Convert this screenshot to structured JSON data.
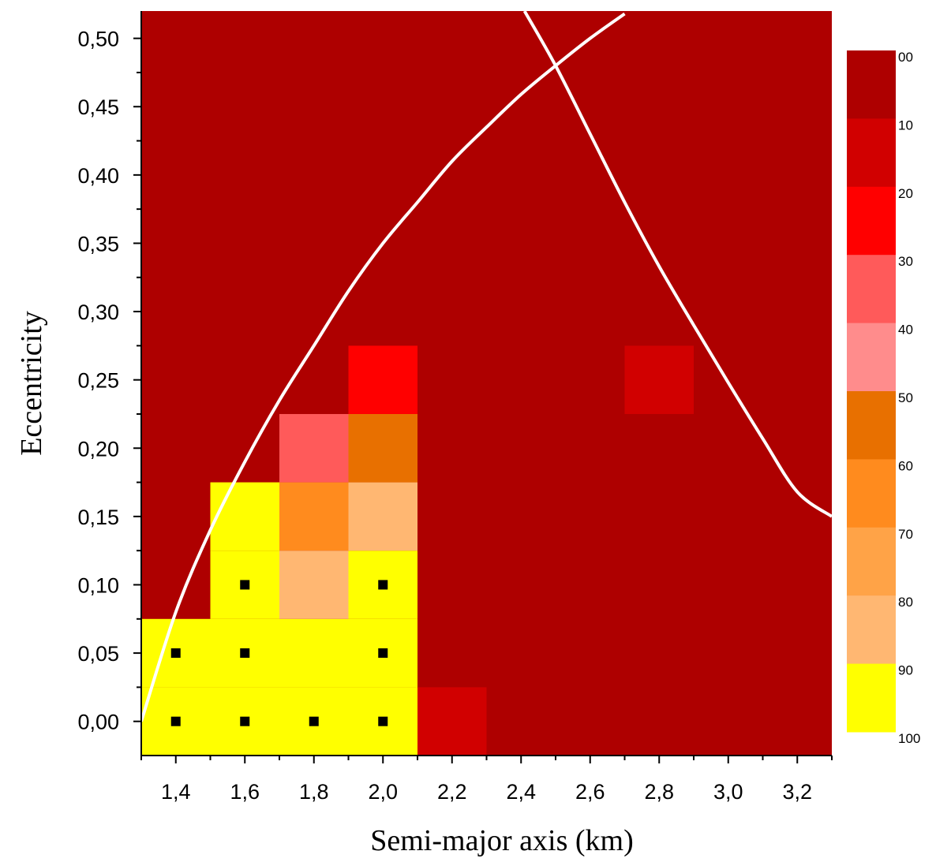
{
  "chart_data": {
    "type": "heatmap",
    "xlabel": "Semi-major axis (km)",
    "ylabel": "Eccentricity",
    "xlim": [
      1.3,
      3.3
    ],
    "ylim": [
      -0.025,
      0.52
    ],
    "cell": {
      "width": 0.2,
      "height": 0.05
    },
    "background_value": 0,
    "x_ticks": [
      1.4,
      1.6,
      1.8,
      2.0,
      2.2,
      2.4,
      2.6,
      2.8,
      3.0,
      3.2
    ],
    "x_tick_labels": [
      "1,4",
      "1,6",
      "1,8",
      "2,0",
      "2,2",
      "2,4",
      "2,6",
      "2,8",
      "3,0",
      "3,2"
    ],
    "y_ticks": [
      0.0,
      0.05,
      0.1,
      0.15,
      0.2,
      0.25,
      0.3,
      0.35,
      0.4,
      0.45,
      0.5
    ],
    "y_tick_labels": [
      "0,00",
      "0,05",
      "0,10",
      "0,15",
      "0,20",
      "0,25",
      "0,30",
      "0,35",
      "0,40",
      "0,45",
      "0,50"
    ],
    "cells": [
      {
        "x": 1.4,
        "y": 0.0,
        "value": 95
      },
      {
        "x": 1.4,
        "y": 0.05,
        "value": 95
      },
      {
        "x": 1.6,
        "y": 0.0,
        "value": 95
      },
      {
        "x": 1.6,
        "y": 0.05,
        "value": 95
      },
      {
        "x": 1.6,
        "y": 0.1,
        "value": 95
      },
      {
        "x": 1.6,
        "y": 0.15,
        "value": 95
      },
      {
        "x": 1.8,
        "y": 0.0,
        "value": 95
      },
      {
        "x": 1.8,
        "y": 0.05,
        "value": 95
      },
      {
        "x": 1.8,
        "y": 0.1,
        "value": 85
      },
      {
        "x": 1.8,
        "y": 0.15,
        "value": 65
      },
      {
        "x": 1.8,
        "y": 0.2,
        "value": 35
      },
      {
        "x": 2.0,
        "y": 0.0,
        "value": 95
      },
      {
        "x": 2.0,
        "y": 0.05,
        "value": 95
      },
      {
        "x": 2.0,
        "y": 0.1,
        "value": 95
      },
      {
        "x": 2.0,
        "y": 0.15,
        "value": 85
      },
      {
        "x": 2.0,
        "y": 0.2,
        "value": 55
      },
      {
        "x": 2.0,
        "y": 0.25,
        "value": 25
      },
      {
        "x": 2.2,
        "y": 0.0,
        "value": 15
      },
      {
        "x": 2.8,
        "y": 0.25,
        "value": 15
      }
    ],
    "markers": [
      {
        "x": 1.4,
        "y": 0.0
      },
      {
        "x": 1.4,
        "y": 0.05
      },
      {
        "x": 1.6,
        "y": 0.0
      },
      {
        "x": 1.6,
        "y": 0.05
      },
      {
        "x": 1.6,
        "y": 0.1
      },
      {
        "x": 1.8,
        "y": 0.0
      },
      {
        "x": 2.0,
        "y": 0.0
      },
      {
        "x": 2.0,
        "y": 0.05
      },
      {
        "x": 2.0,
        "y": 0.1
      }
    ],
    "curves": [
      {
        "color": "#ffffff",
        "points": [
          [
            1.3,
            0.0
          ],
          [
            1.4,
            0.08
          ],
          [
            1.5,
            0.14
          ],
          [
            1.6,
            0.19
          ],
          [
            1.7,
            0.235
          ],
          [
            1.8,
            0.275
          ],
          [
            1.9,
            0.315
          ],
          [
            2.0,
            0.35
          ],
          [
            2.1,
            0.38
          ],
          [
            2.2,
            0.41
          ],
          [
            2.3,
            0.435
          ],
          [
            2.4,
            0.459
          ],
          [
            2.5,
            0.48
          ],
          [
            2.6,
            0.5
          ],
          [
            2.7,
            0.518
          ]
        ]
      },
      {
        "color": "#ffffff",
        "points": [
          [
            2.41,
            0.52
          ],
          [
            2.5,
            0.48
          ],
          [
            2.6,
            0.43
          ],
          [
            2.7,
            0.38
          ],
          [
            2.8,
            0.333
          ],
          [
            2.9,
            0.29
          ],
          [
            3.0,
            0.248
          ],
          [
            3.1,
            0.207
          ],
          [
            3.2,
            0.168
          ],
          [
            3.3,
            0.15
          ]
        ]
      }
    ],
    "colorscale": {
      "labels": [
        "00",
        "10",
        "20",
        "30",
        "40",
        "50",
        "60",
        "70",
        "80",
        "90",
        "100"
      ],
      "colors": [
        "#ae0000",
        "#d10000",
        "#ff0000",
        "#ff5a5a",
        "#ff8c8c",
        "#e87000",
        "#ff8b1e",
        "#ffa347",
        "#ffb772",
        "#ffff00"
      ]
    },
    "grid": false,
    "legend": "right"
  }
}
